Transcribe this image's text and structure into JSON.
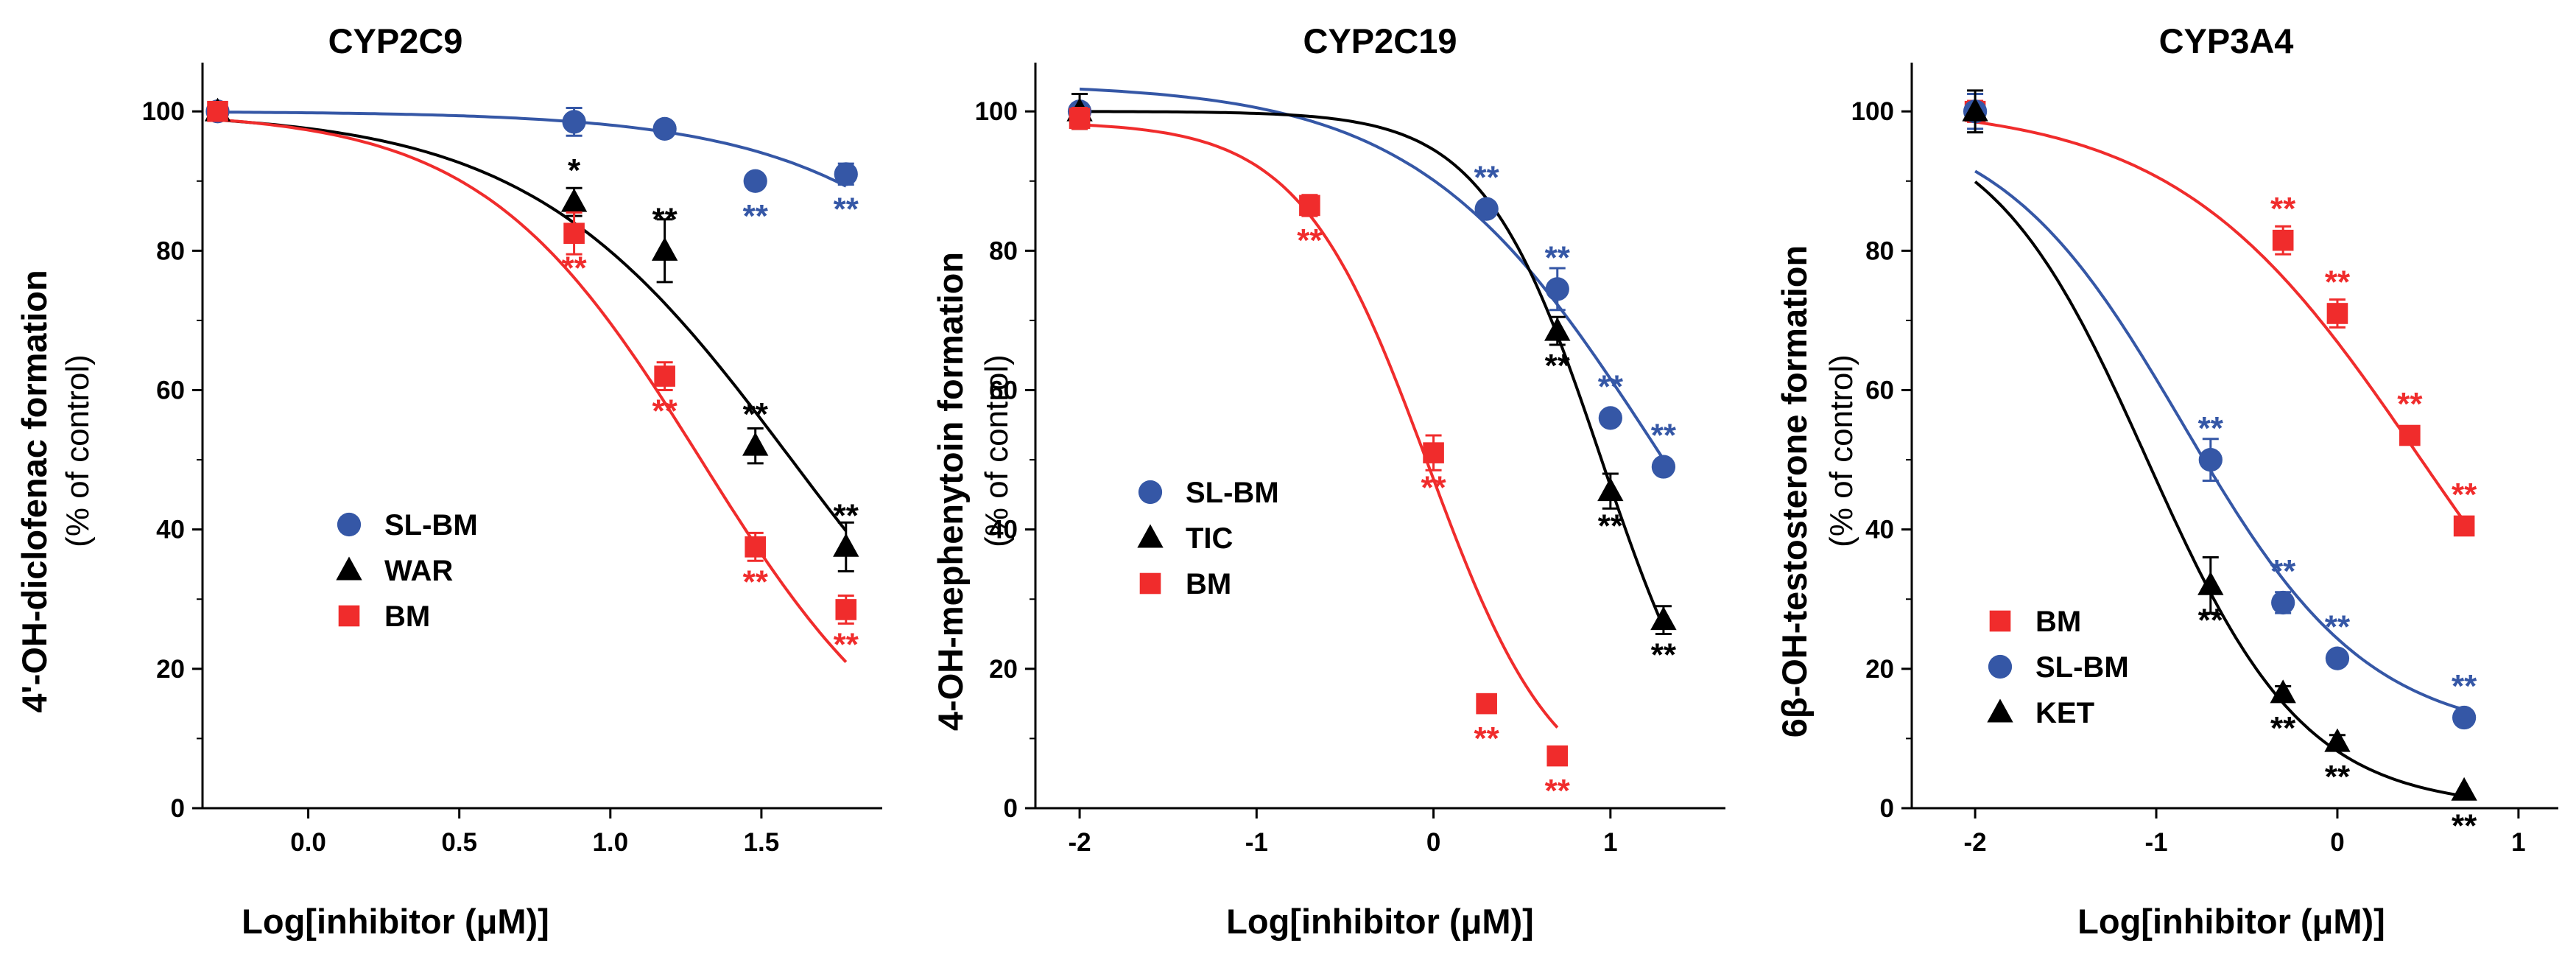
{
  "colors": {
    "blue": "#3557a6",
    "black": "#000000",
    "red": "#f02c2c"
  },
  "chart_data": [
    {
      "type": "scatter",
      "title": "CYP2C9",
      "xlabel": "Log[inhibitor (μM)]",
      "ylabel": "4'-OH-diclofenac formation",
      "ylabel_sub": "(% of control)",
      "xlim": [
        -0.35,
        1.9
      ],
      "ylim": [
        0,
        107
      ],
      "xticks": [
        0.0,
        0.5,
        1.0,
        1.5
      ],
      "xtick_labels": [
        "0.0",
        "0.5",
        "1.0",
        "1.5"
      ],
      "yticks": [
        0,
        20,
        40,
        60,
        80,
        100
      ],
      "legend_position": "center-left",
      "series": [
        {
          "name": "SL-BM",
          "marker": "circle",
          "color": "#3557a6",
          "x": [
            -0.3,
            0.88,
            1.18,
            1.48,
            1.78
          ],
          "y": [
            100,
            98.5,
            97.5,
            90,
            91
          ],
          "err": [
            1,
            2,
            1,
            0.5,
            1.5
          ],
          "sig": [
            "",
            "",
            "",
            "**",
            "**"
          ],
          "fit": {
            "top": 100,
            "bottom": 0,
            "logIC50": 2.7,
            "hill": 1.0
          }
        },
        {
          "name": "WAR",
          "marker": "triangle",
          "color": "#000000",
          "x": [
            -0.3,
            0.88,
            1.18,
            1.48,
            1.78
          ],
          "y": [
            100,
            87,
            80,
            52,
            37.5
          ],
          "err": [
            1,
            2,
            4.5,
            2.5,
            3.5
          ],
          "sig": [
            "",
            "*",
            "**",
            "**",
            "**"
          ],
          "fit": {
            "top": 100,
            "bottom": 0,
            "logIC50": 1.6,
            "hill": 1.0
          }
        },
        {
          "name": "BM",
          "marker": "square",
          "color": "#f02c2c",
          "x": [
            -0.3,
            0.88,
            1.18,
            1.48,
            1.78
          ],
          "y": [
            100,
            82.5,
            62,
            37.5,
            28.5
          ],
          "err": [
            0.5,
            3,
            2,
            2,
            2
          ],
          "sig": [
            "",
            "**",
            "**",
            "**",
            "**"
          ],
          "fit": {
            "top": 100,
            "bottom": 0,
            "logIC50": 1.3,
            "hill": 1.2
          }
        }
      ]
    },
    {
      "type": "scatter",
      "title": "CYP2C19",
      "xlabel": "Log[inhibitor (μM)]",
      "ylabel": "4-OH-mephenytoin formation",
      "ylabel_sub": "(% of control)",
      "xlim": [
        -2.25,
        1.65
      ],
      "ylim": [
        0,
        107
      ],
      "xticks": [
        -2,
        -1,
        0,
        1
      ],
      "xtick_labels": [
        "-2",
        "-1",
        "0",
        "1"
      ],
      "yticks": [
        0,
        20,
        40,
        60,
        80,
        100
      ],
      "legend_position": "center-left",
      "series": [
        {
          "name": "SL-BM",
          "marker": "circle",
          "color": "#3557a6",
          "x": [
            -2,
            0.3,
            0.7,
            1.0,
            1.3
          ],
          "y": [
            100,
            86,
            74.5,
            56,
            49
          ],
          "err": [
            1,
            0.5,
            3,
            1,
            0.5
          ],
          "sig": [
            "",
            "**",
            "**",
            "**",
            "**"
          ],
          "fit": {
            "top": 104,
            "bottom": 0,
            "logIC50": 1.25,
            "hill": 0.65
          }
        },
        {
          "name": "TIC",
          "marker": "triangle",
          "color": "#000000",
          "x": [
            -2,
            0.7,
            1.0,
            1.3
          ],
          "y": [
            100,
            68.5,
            45.5,
            27
          ],
          "err": [
            2.5,
            2,
            2.5,
            2
          ],
          "sig": [
            "",
            "**",
            "**",
            "**"
          ],
          "fit": {
            "top": 100,
            "bottom": 0,
            "logIC50": 0.95,
            "hill": 1.3
          }
        },
        {
          "name": "BM",
          "marker": "square",
          "color": "#f02c2c",
          "x": [
            -2,
            -0.7,
            0.0,
            0.3,
            0.7
          ],
          "y": [
            99,
            86.5,
            51,
            15,
            7.5
          ],
          "err": [
            1.5,
            1.5,
            2.5,
            0.5,
            1
          ],
          "sig": [
            "",
            "**",
            "**",
            "**",
            "**"
          ],
          "fit": {
            "top": 98.5,
            "bottom": 0,
            "logIC50": -0.03,
            "hill": 1.2
          }
        }
      ]
    },
    {
      "type": "scatter",
      "title": "CYP3A4",
      "xlabel": "Log[inhibitor (μM)]",
      "ylabel": "6β-OH-testosterone formation",
      "ylabel_sub": "(% of control)",
      "xlim": [
        -2.35,
        1.22
      ],
      "ylim": [
        0,
        107
      ],
      "xticks": [
        -2,
        -1,
        0,
        1
      ],
      "xtick_labels": [
        "-2",
        "-1",
        "0",
        "1"
      ],
      "yticks": [
        0,
        20,
        40,
        60,
        80,
        100
      ],
      "legend_position": "bottom-left",
      "series": [
        {
          "name": "BM",
          "marker": "square",
          "color": "#f02c2c",
          "x": [
            -2,
            -0.3,
            0.0,
            0.4,
            0.7
          ],
          "y": [
            100,
            81.5,
            71,
            53.5,
            40.5
          ],
          "err": [
            1.5,
            2,
            2,
            1,
            1
          ],
          "sig": [
            "",
            "**",
            "**",
            "**",
            "**"
          ],
          "fit": {
            "top": 101,
            "bottom": 0,
            "logIC50": 0.45,
            "hill": 0.65
          }
        },
        {
          "name": "SL-BM",
          "marker": "circle",
          "color": "#3557a6",
          "x": [
            -2,
            -0.7,
            -0.3,
            0.0,
            0.7
          ],
          "y": [
            100,
            50,
            29.5,
            21.5,
            13
          ],
          "err": [
            2.5,
            3,
            1.5,
            1,
            1
          ],
          "sig": [
            "",
            "**",
            "**",
            "**",
            "**"
          ],
          "fit": {
            "top": 100,
            "bottom": 10,
            "logIC50": -0.85,
            "hill": 0.85
          }
        },
        {
          "name": "KET",
          "marker": "triangle",
          "color": "#000000",
          "x": [
            -2,
            -0.7,
            -0.3,
            0.0,
            0.7
          ],
          "y": [
            100,
            32,
            16.5,
            9.5,
            2.5
          ],
          "err": [
            3,
            4,
            1,
            1,
            0.5
          ],
          "sig": [
            "",
            "**",
            "**",
            "**",
            "**"
          ],
          "fit": {
            "top": 100,
            "bottom": 0,
            "logIC50": -1.05,
            "hill": 1.0
          }
        }
      ]
    }
  ]
}
